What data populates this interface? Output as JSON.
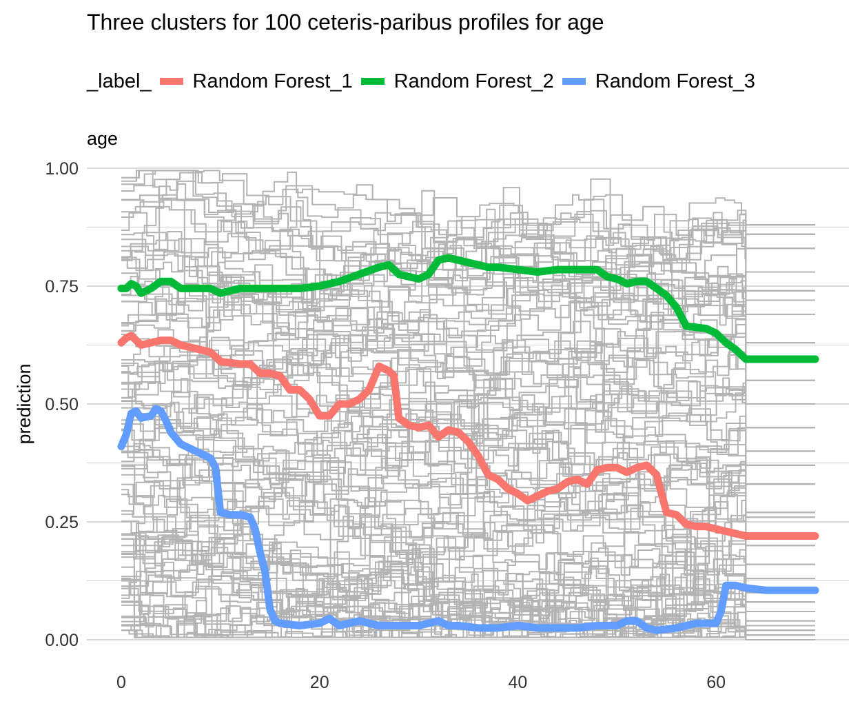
{
  "chart_data": {
    "type": "line",
    "title": "Three clusters for 100 ceteris-paribus profiles for age",
    "xlabel": "age",
    "ylabel": "prediction",
    "xlim": [
      0,
      70
    ],
    "ylim": [
      0,
      1
    ],
    "x_ticks": [
      "0",
      "20",
      "40",
      "60"
    ],
    "x_tick_values": [
      0,
      20,
      40,
      60
    ],
    "y_ticks": [
      "0.00",
      "0.25",
      "0.50",
      "0.75",
      "1.00"
    ],
    "y_tick_values": [
      0,
      0.25,
      0.5,
      0.75,
      1.0
    ],
    "grid": true,
    "legend": {
      "title": "_label_",
      "position": "top"
    },
    "background_profiles": {
      "count": 100,
      "color": "#b3b3b3",
      "end_values_sample": [
        0.88,
        0.86,
        0.83,
        0.78,
        0.74,
        0.72,
        0.69,
        0.63,
        0.6,
        0.55,
        0.5,
        0.45,
        0.4,
        0.37,
        0.33,
        0.27,
        0.26,
        0.2,
        0.16,
        0.13,
        0.1,
        0.08,
        0.06,
        0.04,
        0.03,
        0.02,
        0.01,
        0.0
      ]
    },
    "series": [
      {
        "name": "Random Forest_1",
        "color": "#F8766D",
        "points": [
          [
            0,
            0.63
          ],
          [
            0.5,
            0.64
          ],
          [
            1,
            0.645
          ],
          [
            1.5,
            0.635
          ],
          [
            2,
            0.625
          ],
          [
            3,
            0.63
          ],
          [
            4,
            0.635
          ],
          [
            5,
            0.635
          ],
          [
            6,
            0.625
          ],
          [
            7,
            0.62
          ],
          [
            8,
            0.615
          ],
          [
            9,
            0.61
          ],
          [
            10,
            0.59
          ],
          [
            12,
            0.585
          ],
          [
            13,
            0.585
          ],
          [
            14,
            0.565
          ],
          [
            15,
            0.565
          ],
          [
            16,
            0.56
          ],
          [
            17,
            0.53
          ],
          [
            18,
            0.53
          ],
          [
            19,
            0.51
          ],
          [
            20,
            0.475
          ],
          [
            21,
            0.475
          ],
          [
            22,
            0.5
          ],
          [
            23,
            0.5
          ],
          [
            24,
            0.51
          ],
          [
            25,
            0.53
          ],
          [
            26,
            0.58
          ],
          [
            27,
            0.57
          ],
          [
            27.5,
            0.56
          ],
          [
            28,
            0.47
          ],
          [
            29,
            0.455
          ],
          [
            30,
            0.45
          ],
          [
            31,
            0.455
          ],
          [
            32,
            0.43
          ],
          [
            33,
            0.445
          ],
          [
            34,
            0.44
          ],
          [
            35,
            0.42
          ],
          [
            36,
            0.39
          ],
          [
            37,
            0.35
          ],
          [
            38,
            0.34
          ],
          [
            39,
            0.32
          ],
          [
            40,
            0.31
          ],
          [
            41,
            0.295
          ],
          [
            42,
            0.305
          ],
          [
            43,
            0.315
          ],
          [
            44,
            0.32
          ],
          [
            45,
            0.335
          ],
          [
            46,
            0.34
          ],
          [
            47,
            0.33
          ],
          [
            48,
            0.36
          ],
          [
            49,
            0.365
          ],
          [
            50,
            0.365
          ],
          [
            51,
            0.355
          ],
          [
            52,
            0.365
          ],
          [
            53,
            0.37
          ],
          [
            54,
            0.35
          ],
          [
            55,
            0.27
          ],
          [
            56,
            0.265
          ],
          [
            57,
            0.245
          ],
          [
            58,
            0.24
          ],
          [
            59,
            0.24
          ],
          [
            60,
            0.235
          ],
          [
            61,
            0.23
          ],
          [
            62,
            0.225
          ],
          [
            63,
            0.22
          ],
          [
            65,
            0.22
          ],
          [
            70,
            0.22
          ]
        ]
      },
      {
        "name": "Random Forest_2",
        "color": "#00BA38",
        "points": [
          [
            0,
            0.745
          ],
          [
            0.5,
            0.745
          ],
          [
            1,
            0.755
          ],
          [
            1.5,
            0.75
          ],
          [
            2,
            0.735
          ],
          [
            3,
            0.745
          ],
          [
            4,
            0.76
          ],
          [
            5,
            0.76
          ],
          [
            6,
            0.745
          ],
          [
            7,
            0.745
          ],
          [
            8,
            0.745
          ],
          [
            9,
            0.745
          ],
          [
            10,
            0.735
          ],
          [
            11,
            0.74
          ],
          [
            12,
            0.745
          ],
          [
            13,
            0.745
          ],
          [
            14,
            0.745
          ],
          [
            15,
            0.745
          ],
          [
            16,
            0.745
          ],
          [
            18,
            0.745
          ],
          [
            20,
            0.75
          ],
          [
            22,
            0.76
          ],
          [
            24,
            0.775
          ],
          [
            26,
            0.79
          ],
          [
            27,
            0.795
          ],
          [
            28,
            0.775
          ],
          [
            29,
            0.77
          ],
          [
            30,
            0.765
          ],
          [
            31,
            0.775
          ],
          [
            32,
            0.805
          ],
          [
            33,
            0.81
          ],
          [
            34,
            0.805
          ],
          [
            35,
            0.8
          ],
          [
            36,
            0.795
          ],
          [
            37,
            0.79
          ],
          [
            38,
            0.79
          ],
          [
            40,
            0.785
          ],
          [
            42,
            0.78
          ],
          [
            44,
            0.785
          ],
          [
            46,
            0.785
          ],
          [
            48,
            0.785
          ],
          [
            49,
            0.77
          ],
          [
            50,
            0.765
          ],
          [
            51,
            0.755
          ],
          [
            52,
            0.76
          ],
          [
            53,
            0.76
          ],
          [
            54,
            0.745
          ],
          [
            55,
            0.73
          ],
          [
            56,
            0.705
          ],
          [
            57,
            0.665
          ],
          [
            59,
            0.66
          ],
          [
            60,
            0.65
          ],
          [
            61,
            0.63
          ],
          [
            62,
            0.615
          ],
          [
            63,
            0.595
          ],
          [
            65,
            0.595
          ],
          [
            70,
            0.595
          ]
        ]
      },
      {
        "name": "Random Forest_3",
        "color": "#619CFF",
        "points": [
          [
            0,
            0.41
          ],
          [
            0.5,
            0.435
          ],
          [
            1,
            0.48
          ],
          [
            1.5,
            0.485
          ],
          [
            2,
            0.47
          ],
          [
            3,
            0.475
          ],
          [
            3.5,
            0.49
          ],
          [
            4,
            0.485
          ],
          [
            4.5,
            0.465
          ],
          [
            5,
            0.44
          ],
          [
            6,
            0.415
          ],
          [
            7,
            0.405
          ],
          [
            8,
            0.395
          ],
          [
            9,
            0.385
          ],
          [
            9.5,
            0.365
          ],
          [
            10,
            0.27
          ],
          [
            11,
            0.265
          ],
          [
            12,
            0.265
          ],
          [
            13,
            0.26
          ],
          [
            13.5,
            0.235
          ],
          [
            14,
            0.185
          ],
          [
            14.5,
            0.145
          ],
          [
            15,
            0.065
          ],
          [
            15.5,
            0.04
          ],
          [
            16,
            0.035
          ],
          [
            18,
            0.03
          ],
          [
            20,
            0.035
          ],
          [
            21,
            0.045
          ],
          [
            22,
            0.03
          ],
          [
            24,
            0.04
          ],
          [
            26,
            0.03
          ],
          [
            28,
            0.03
          ],
          [
            30,
            0.03
          ],
          [
            32,
            0.04
          ],
          [
            33,
            0.03
          ],
          [
            34,
            0.03
          ],
          [
            36,
            0.025
          ],
          [
            38,
            0.025
          ],
          [
            40,
            0.03
          ],
          [
            42,
            0.025
          ],
          [
            44,
            0.025
          ],
          [
            46,
            0.025
          ],
          [
            48,
            0.03
          ],
          [
            50,
            0.03
          ],
          [
            51,
            0.04
          ],
          [
            52,
            0.04
          ],
          [
            53,
            0.025
          ],
          [
            54,
            0.02
          ],
          [
            56,
            0.025
          ],
          [
            58,
            0.035
          ],
          [
            60,
            0.035
          ],
          [
            60.5,
            0.06
          ],
          [
            61,
            0.115
          ],
          [
            62,
            0.115
          ],
          [
            63,
            0.11
          ],
          [
            65,
            0.105
          ],
          [
            70,
            0.105
          ]
        ]
      }
    ]
  }
}
